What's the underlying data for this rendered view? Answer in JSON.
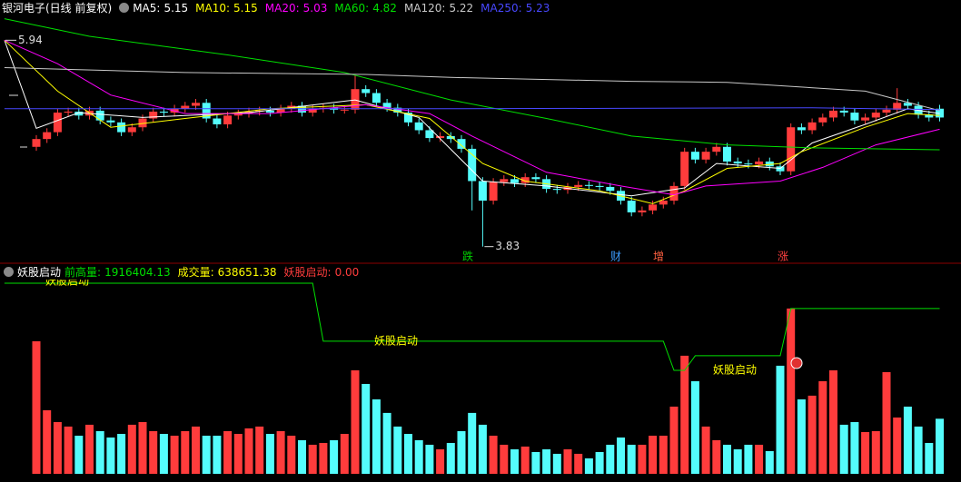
{
  "chart_data": [
    {
      "type": "candlestick",
      "title": "银河电子(日线 前复权)",
      "up_color": "#ff3c3c",
      "down_color": "#54fcfc",
      "open": [
        4.85,
        4.93,
        5.0,
        5.2,
        5.21,
        5.17,
        5.22,
        5.12,
        5.1,
        5.0,
        5.05,
        5.14,
        5.21,
        5.2,
        5.24,
        5.27,
        5.3,
        5.14,
        5.08,
        5.17,
        5.19,
        5.21,
        5.22,
        5.2,
        5.24,
        5.27,
        5.2,
        5.24,
        5.25,
        5.23,
        5.23,
        5.44,
        5.4,
        5.3,
        5.25,
        5.2,
        5.1,
        5.02,
        4.94,
        4.96,
        4.93,
        4.83,
        4.5,
        4.3,
        4.49,
        4.52,
        4.48,
        4.54,
        4.52,
        4.42,
        4.41,
        4.44,
        4.46,
        4.45,
        4.44,
        4.4,
        4.3,
        4.18,
        4.2,
        4.26,
        4.3,
        4.45,
        4.8,
        4.72,
        4.8,
        4.85,
        4.7,
        4.68,
        4.67,
        4.7,
        4.65,
        4.6,
        5.05,
        5.02,
        5.1,
        5.15,
        5.22,
        5.2,
        5.12,
        5.15,
        5.2,
        5.23,
        5.3,
        5.27,
        5.18,
        5.24
      ],
      "high": [
        4.97,
        5.04,
        5.24,
        5.25,
        5.25,
        5.26,
        5.26,
        5.16,
        5.14,
        5.09,
        5.18,
        5.25,
        5.25,
        5.28,
        5.31,
        5.34,
        5.34,
        5.18,
        5.21,
        5.23,
        5.25,
        5.26,
        5.26,
        5.28,
        5.31,
        5.31,
        5.28,
        5.29,
        5.29,
        5.27,
        5.58,
        5.48,
        5.44,
        5.34,
        5.29,
        5.24,
        5.14,
        5.06,
        5.0,
        5.0,
        4.97,
        4.87,
        4.54,
        4.53,
        4.56,
        4.56,
        4.58,
        4.58,
        4.56,
        4.46,
        4.48,
        4.5,
        4.5,
        4.49,
        4.48,
        4.44,
        4.34,
        4.24,
        4.3,
        4.34,
        4.49,
        4.84,
        4.84,
        4.84,
        4.89,
        4.89,
        4.74,
        4.72,
        4.74,
        4.74,
        4.69,
        5.09,
        5.09,
        5.14,
        5.19,
        5.26,
        5.26,
        5.24,
        5.19,
        5.24,
        5.27,
        5.45,
        5.34,
        5.31,
        5.22,
        5.28
      ],
      "low": [
        4.81,
        4.89,
        4.96,
        5.16,
        5.13,
        5.13,
        5.08,
        5.06,
        4.96,
        4.96,
        5.01,
        5.1,
        5.16,
        5.16,
        5.2,
        5.23,
        5.1,
        5.04,
        5.04,
        5.13,
        5.15,
        5.17,
        5.16,
        5.16,
        5.2,
        5.16,
        5.16,
        5.2,
        5.19,
        5.19,
        5.19,
        5.36,
        5.26,
        5.21,
        5.16,
        5.06,
        4.98,
        4.9,
        4.9,
        4.89,
        4.79,
        4.2,
        3.83,
        4.26,
        4.45,
        4.44,
        4.44,
        4.48,
        4.38,
        4.37,
        4.37,
        4.4,
        4.41,
        4.4,
        4.36,
        4.26,
        4.14,
        4.14,
        4.16,
        4.22,
        4.26,
        4.41,
        4.68,
        4.68,
        4.76,
        4.66,
        4.64,
        4.63,
        4.63,
        4.61,
        4.56,
        4.56,
        4.98,
        4.98,
        5.06,
        5.11,
        5.16,
        5.08,
        5.08,
        5.11,
        5.16,
        5.19,
        5.23,
        5.14,
        5.11,
        5.11
      ],
      "close": [
        4.93,
        5.0,
        5.2,
        5.21,
        5.17,
        5.22,
        5.12,
        5.1,
        5.0,
        5.05,
        5.14,
        5.21,
        5.2,
        5.24,
        5.27,
        5.3,
        5.14,
        5.08,
        5.17,
        5.19,
        5.21,
        5.22,
        5.2,
        5.24,
        5.27,
        5.2,
        5.24,
        5.25,
        5.23,
        5.23,
        5.44,
        5.4,
        5.3,
        5.25,
        5.2,
        5.1,
        5.02,
        4.94,
        4.96,
        4.93,
        4.83,
        4.5,
        4.3,
        4.49,
        4.52,
        4.48,
        4.54,
        4.52,
        4.42,
        4.41,
        4.44,
        4.46,
        4.45,
        4.44,
        4.4,
        4.3,
        4.18,
        4.2,
        4.26,
        4.3,
        4.45,
        4.8,
        4.72,
        4.8,
        4.85,
        4.7,
        4.68,
        4.67,
        4.7,
        4.65,
        4.6,
        5.05,
        5.02,
        5.1,
        5.15,
        5.22,
        5.2,
        5.12,
        5.15,
        5.2,
        5.23,
        5.3,
        5.27,
        5.18,
        5.15,
        5.15
      ],
      "ylim": [
        3.66,
        6.24
      ],
      "high_mark": 5.94,
      "low_mark": 3.83,
      "series": [
        {
          "name": "MA5:",
          "last": 5.15,
          "color": "#ffffff",
          "x": [
            -3,
            0,
            4,
            10,
            20,
            30,
            36,
            42,
            48,
            56,
            61,
            64,
            70,
            73,
            78,
            82,
            85
          ],
          "values": [
            5.94,
            5.04,
            5.2,
            5.15,
            5.2,
            5.33,
            5.15,
            4.5,
            4.45,
            4.35,
            4.43,
            4.68,
            4.63,
            4.89,
            5.08,
            5.24,
            5.19
          ]
        },
        {
          "name": "MA10:",
          "last": 5.15,
          "color": "#ffff00",
          "x": [
            -3,
            2,
            7,
            14,
            22,
            31,
            37,
            42,
            46,
            53,
            58,
            61,
            65,
            70,
            72,
            78,
            82,
            85
          ],
          "values": [
            5.94,
            5.42,
            5.05,
            5.14,
            5.24,
            5.28,
            5.14,
            4.68,
            4.5,
            4.4,
            4.27,
            4.4,
            4.63,
            4.68,
            4.8,
            5.05,
            5.19,
            5.17
          ]
        },
        {
          "name": "MA20:",
          "last": 5.03,
          "color": "#ff00ff",
          "x": [
            -3,
            2,
            7,
            14,
            22,
            31,
            37,
            41,
            48,
            55,
            60,
            63,
            70,
            74,
            79,
            85
          ],
          "values": [
            5.94,
            5.7,
            5.38,
            5.19,
            5.19,
            5.28,
            5.19,
            4.96,
            4.59,
            4.45,
            4.36,
            4.45,
            4.5,
            4.64,
            4.87,
            5.03
          ]
        },
        {
          "name": "MA60:",
          "last": 4.82,
          "color": "#00e000",
          "x": [
            -3,
            5,
            18,
            29,
            39,
            48,
            56,
            65,
            73,
            85
          ],
          "values": [
            6.16,
            5.98,
            5.79,
            5.61,
            5.33,
            5.14,
            4.96,
            4.87,
            4.84,
            4.82
          ]
        },
        {
          "name": "MA120:",
          "last": 5.22,
          "color": "#c8c8c8",
          "x": [
            -3,
            14,
            31,
            39,
            56,
            65,
            78,
            85
          ],
          "values": [
            5.66,
            5.61,
            5.59,
            5.56,
            5.52,
            5.51,
            5.42,
            5.22
          ]
        },
        {
          "name": "MA250:",
          "last": 5.23,
          "color": "#4848ff",
          "x": [
            -3,
            40,
            73,
            85
          ],
          "values": [
            5.24,
            5.24,
            5.25,
            5.23
          ]
        }
      ],
      "event_markers": [
        {
          "label": "跌",
          "color": "#00d000"
        },
        {
          "label": "财",
          "color": "#3c9cff"
        },
        {
          "label": "增",
          "color": "#ff6040"
        },
        {
          "label": "涨",
          "color": "#ff4040"
        }
      ]
    },
    {
      "type": "bar",
      "title": "妖股启动",
      "values": [
        1537000,
        737000,
        600000,
        548000,
        442000,
        569000,
        495000,
        421000,
        463000,
        569000,
        600000,
        495000,
        463000,
        442000,
        495000,
        548000,
        442000,
        442000,
        495000,
        463000,
        527000,
        548000,
        463000,
        495000,
        442000,
        390000,
        337000,
        358000,
        390000,
        463000,
        1200000,
        1042000,
        863000,
        706000,
        548000,
        463000,
        390000,
        337000,
        284000,
        358000,
        495000,
        706000,
        569000,
        442000,
        337000,
        284000,
        316000,
        253000,
        284000,
        232000,
        284000,
        232000,
        179000,
        253000,
        337000,
        421000,
        337000,
        337000,
        442000,
        442000,
        779000,
        1369000,
        1074000,
        548000,
        390000,
        337000,
        284000,
        337000,
        337000,
        263000,
        1253000,
        1916404.13,
        863000,
        906000,
        1074000,
        1200000,
        569000,
        600000,
        484000,
        495000,
        1179000,
        653000,
        779000,
        548000,
        358000,
        638651.38
      ],
      "ylim": [
        0,
        2420000
      ],
      "series": [
        {
          "name": "前高量:",
          "last": 1916404.13,
          "color": "#00e000",
          "x": [
            -3,
            26,
            27,
            59,
            60,
            61,
            62,
            70,
            71,
            85
          ],
          "values": [
            2210000,
            2210000,
            1537000,
            1537000,
            1200000,
            1200000,
            1369000,
            1369000,
            1916404.13,
            1916404.13
          ]
        },
        {
          "name": "成交量:",
          "last": 638651.38,
          "color": "#ffff00"
        },
        {
          "name": "妖股启动:",
          "last": {
            "value": 0,
            "label": "0.00"
          },
          "color": "#ff3c3c"
        }
      ],
      "signal_labels": [
        "妖股启动",
        "妖股启动",
        "妖股启动"
      ],
      "signal_color": "#ffff00"
    }
  ]
}
